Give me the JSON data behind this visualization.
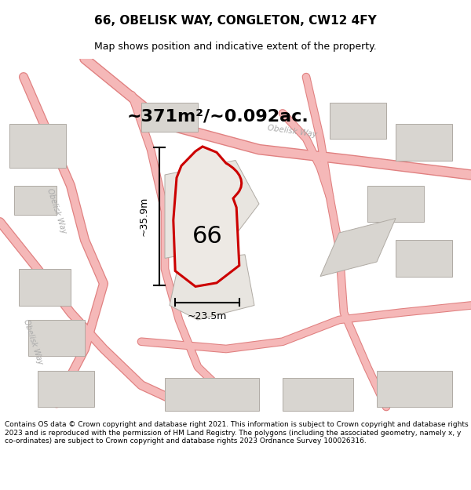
{
  "title": "66, OBELISK WAY, CONGLETON, CW12 4FY",
  "subtitle": "Map shows position and indicative extent of the property.",
  "area_text": "~371m²/~0.092ac.",
  "dim_h": "~35.9m",
  "dim_w": "~23.5m",
  "label_66": "66",
  "footer": "Contains OS data © Crown copyright and database right 2021. This information is subject to Crown copyright and database rights 2023 and is reproduced with the permission of HM Land Registry. The polygons (including the associated geometry, namely x, y co-ordinates) are subject to Crown copyright and database rights 2023 Ordnance Survey 100026316.",
  "bg_color": "#f5f5f5",
  "map_bg": "#f0efed",
  "building_fill": "#d8d5d0",
  "building_edge": "#b0aba4",
  "road_color": "#f5b8b8",
  "road_outline": "#e08080",
  "highlight_fill": "#f0eeec",
  "highlight_edge": "#cc0000",
  "title_fontsize": 11,
  "subtitle_fontsize": 9,
  "area_fontsize": 16,
  "label_fontsize": 22,
  "footer_fontsize": 6.5
}
